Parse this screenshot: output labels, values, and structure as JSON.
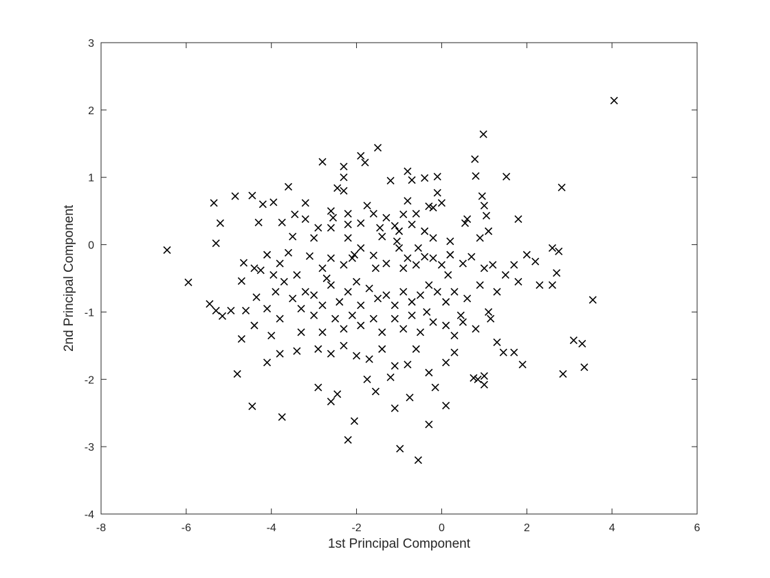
{
  "chart_data": {
    "type": "scatter",
    "title": "",
    "xlabel": "1st Principal Component",
    "ylabel": "2nd Principal Component",
    "xlim": [
      -8,
      6
    ],
    "ylim": [
      -4,
      3
    ],
    "xticks": [
      -8,
      -6,
      -4,
      -2,
      0,
      2,
      4,
      6
    ],
    "yticks": [
      -4,
      -3,
      -2,
      -1,
      0,
      1,
      2,
      3
    ],
    "grid": false,
    "box": true,
    "marker": "x",
    "marker_color": "#000000",
    "series": [
      {
        "points": [
          [
            4.05,
            2.14
          ],
          [
            0.98,
            1.64
          ],
          [
            -1.5,
            1.44
          ],
          [
            -1.9,
            1.32
          ],
          [
            -1.8,
            1.22
          ],
          [
            -2.8,
            1.23
          ],
          [
            -2.3,
            1.16
          ],
          [
            -0.8,
            1.09
          ],
          [
            -0.1,
            1.01
          ],
          [
            -0.4,
            0.99
          ],
          [
            -1.2,
            0.95
          ],
          [
            0.78,
            1.27
          ],
          [
            0.8,
            1.02
          ],
          [
            1.52,
            1.01
          ],
          [
            2.82,
            0.85
          ],
          [
            -2.3,
            1.0
          ],
          [
            -3.6,
            0.86
          ],
          [
            -2.45,
            0.84
          ],
          [
            -2.3,
            0.8
          ],
          [
            -0.7,
            0.96
          ],
          [
            -0.1,
            0.77
          ],
          [
            -3.2,
            0.62
          ],
          [
            -4.45,
            0.73
          ],
          [
            -4.85,
            0.72
          ],
          [
            -5.35,
            0.62
          ],
          [
            -5.2,
            0.32
          ],
          [
            -5.3,
            0.02
          ],
          [
            -4.3,
            0.33
          ],
          [
            -4.2,
            0.6
          ],
          [
            -3.95,
            0.63
          ],
          [
            -3.75,
            0.33
          ],
          [
            -3.45,
            0.45
          ],
          [
            -3.2,
            0.38
          ],
          [
            -3.5,
            0.12
          ],
          [
            -2.9,
            0.25
          ],
          [
            -2.6,
            0.5
          ],
          [
            -2.55,
            0.4
          ],
          [
            -2.2,
            0.46
          ],
          [
            -1.75,
            0.58
          ],
          [
            -1.6,
            0.46
          ],
          [
            -1.3,
            0.4
          ],
          [
            -0.9,
            0.45
          ],
          [
            -0.6,
            0.46
          ],
          [
            -0.3,
            0.57
          ],
          [
            0.0,
            0.62
          ],
          [
            -0.2,
            0.55
          ],
          [
            0.6,
            0.38
          ],
          [
            0.55,
            0.32
          ],
          [
            1.0,
            0.58
          ],
          [
            1.05,
            0.43
          ],
          [
            0.95,
            0.72
          ],
          [
            1.8,
            0.38
          ],
          [
            -0.8,
            0.65
          ],
          [
            -1.1,
            0.28
          ],
          [
            -1.9,
            0.32
          ],
          [
            -2.2,
            0.3
          ],
          [
            -2.6,
            0.25
          ],
          [
            -3.0,
            0.1
          ],
          [
            -2.2,
            0.1
          ],
          [
            -1.4,
            0.12
          ],
          [
            -1.0,
            0.2
          ],
          [
            -0.7,
            0.3
          ],
          [
            -0.4,
            0.2
          ],
          [
            -0.2,
            0.1
          ],
          [
            0.2,
            0.05
          ],
          [
            0.9,
            0.1
          ],
          [
            1.1,
            0.2
          ],
          [
            -6.45,
            -0.08
          ],
          [
            -5.95,
            -0.56
          ],
          [
            -5.45,
            -0.88
          ],
          [
            -5.3,
            -0.98
          ],
          [
            -5.15,
            -1.06
          ],
          [
            -4.95,
            -0.98
          ],
          [
            -4.7,
            -0.54
          ],
          [
            -4.65,
            -0.27
          ],
          [
            -4.4,
            -0.35
          ],
          [
            -4.25,
            -0.38
          ],
          [
            -4.1,
            -0.15
          ],
          [
            -3.95,
            -0.45
          ],
          [
            -3.8,
            -0.28
          ],
          [
            -3.6,
            -0.12
          ],
          [
            -3.4,
            -0.45
          ],
          [
            -3.1,
            -0.17
          ],
          [
            -2.8,
            -0.35
          ],
          [
            -2.6,
            -0.2
          ],
          [
            -2.3,
            -0.3
          ],
          [
            -2.1,
            -0.2
          ],
          [
            -1.9,
            -0.05
          ],
          [
            -1.6,
            -0.16
          ],
          [
            -1.3,
            -0.28
          ],
          [
            -1.0,
            -0.05
          ],
          [
            -0.8,
            -0.2
          ],
          [
            -0.6,
            -0.3
          ],
          [
            -0.4,
            -0.18
          ],
          [
            -0.2,
            -0.2
          ],
          [
            0.0,
            -0.3
          ],
          [
            0.2,
            -0.15
          ],
          [
            0.5,
            -0.28
          ],
          [
            0.7,
            -0.18
          ],
          [
            1.0,
            -0.35
          ],
          [
            1.2,
            -0.3
          ],
          [
            1.5,
            -0.45
          ],
          [
            1.7,
            -0.3
          ],
          [
            2.0,
            -0.15
          ],
          [
            2.2,
            -0.25
          ],
          [
            2.6,
            -0.05
          ],
          [
            2.75,
            -0.1
          ],
          [
            2.6,
            -0.6
          ],
          [
            2.7,
            -0.42
          ],
          [
            3.55,
            -0.82
          ],
          [
            -4.6,
            -0.98
          ],
          [
            -4.35,
            -0.78
          ],
          [
            -4.1,
            -0.95
          ],
          [
            -3.9,
            -0.7
          ],
          [
            -3.7,
            -0.55
          ],
          [
            -3.5,
            -0.8
          ],
          [
            -3.2,
            -0.7
          ],
          [
            -3.0,
            -0.75
          ],
          [
            -2.8,
            -0.9
          ],
          [
            -2.6,
            -0.6
          ],
          [
            -2.4,
            -0.85
          ],
          [
            -2.2,
            -0.7
          ],
          [
            -2.0,
            -0.55
          ],
          [
            -1.9,
            -0.9
          ],
          [
            -1.7,
            -0.65
          ],
          [
            -1.5,
            -0.8
          ],
          [
            -1.3,
            -0.75
          ],
          [
            -1.1,
            -0.9
          ],
          [
            -0.9,
            -0.7
          ],
          [
            -0.7,
            -0.85
          ],
          [
            -0.5,
            -0.75
          ],
          [
            -0.3,
            -0.6
          ],
          [
            -0.1,
            -0.7
          ],
          [
            0.1,
            -0.85
          ],
          [
            0.3,
            -0.7
          ],
          [
            0.6,
            -0.8
          ],
          [
            0.9,
            -0.6
          ],
          [
            1.3,
            -0.7
          ],
          [
            1.8,
            -0.55
          ],
          [
            2.3,
            -0.6
          ],
          [
            -4.7,
            -1.4
          ],
          [
            -4.4,
            -1.2
          ],
          [
            -4.0,
            -1.35
          ],
          [
            -3.8,
            -1.1
          ],
          [
            -3.3,
            -1.3
          ],
          [
            -3.0,
            -1.05
          ],
          [
            -2.8,
            -1.3
          ],
          [
            -2.5,
            -1.1
          ],
          [
            -2.3,
            -1.25
          ],
          [
            -2.1,
            -1.05
          ],
          [
            -1.9,
            -1.2
          ],
          [
            -1.6,
            -1.1
          ],
          [
            -1.4,
            -1.3
          ],
          [
            -1.1,
            -1.1
          ],
          [
            -0.9,
            -1.25
          ],
          [
            -0.7,
            -1.05
          ],
          [
            -0.5,
            -1.3
          ],
          [
            -0.2,
            -1.15
          ],
          [
            0.1,
            -1.2
          ],
          [
            0.3,
            -1.35
          ],
          [
            0.5,
            -1.15
          ],
          [
            0.8,
            -1.25
          ],
          [
            1.1,
            -1.0
          ],
          [
            1.3,
            -1.45
          ],
          [
            1.45,
            -1.6
          ],
          [
            1.7,
            -1.6
          ],
          [
            1.9,
            -1.78
          ],
          [
            2.85,
            -1.92
          ],
          [
            3.1,
            -1.42
          ],
          [
            3.3,
            -1.47
          ],
          [
            3.35,
            -1.82
          ],
          [
            -4.8,
            -1.92
          ],
          [
            -4.1,
            -1.75
          ],
          [
            -3.8,
            -1.62
          ],
          [
            -3.4,
            -1.58
          ],
          [
            -2.9,
            -1.55
          ],
          [
            -2.6,
            -1.62
          ],
          [
            -2.3,
            -1.5
          ],
          [
            -2.0,
            -1.65
          ],
          [
            -1.7,
            -1.7
          ],
          [
            -1.4,
            -1.55
          ],
          [
            -1.1,
            -1.8
          ],
          [
            -0.8,
            -1.78
          ],
          [
            -0.6,
            -1.55
          ],
          [
            -0.3,
            -1.9
          ],
          [
            0.1,
            -1.75
          ],
          [
            0.3,
            -1.6
          ],
          [
            0.75,
            -1.98
          ],
          [
            1.0,
            -1.95
          ],
          [
            -4.45,
            -2.4
          ],
          [
            -3.75,
            -2.56
          ],
          [
            -2.9,
            -2.12
          ],
          [
            -2.6,
            -2.33
          ],
          [
            -2.45,
            -2.22
          ],
          [
            -2.05,
            -2.62
          ],
          [
            -2.2,
            -2.9
          ],
          [
            -1.55,
            -2.18
          ],
          [
            -1.1,
            -2.43
          ],
          [
            -0.75,
            -2.27
          ],
          [
            -0.3,
            -2.67
          ],
          [
            0.1,
            -2.39
          ],
          [
            -0.15,
            -2.12
          ],
          [
            -0.98,
            -3.03
          ],
          [
            -0.55,
            -3.2
          ],
          [
            -1.75,
            -2.0
          ],
          [
            -1.2,
            -1.97
          ],
          [
            1.0,
            -2.08
          ],
          [
            0.85,
            -2.0
          ],
          [
            -1.05,
            0.05
          ],
          [
            -0.55,
            -0.05
          ],
          [
            0.15,
            -0.45
          ],
          [
            -1.55,
            -0.35
          ],
          [
            -2.7,
            -0.5
          ],
          [
            -3.3,
            -0.95
          ],
          [
            -0.9,
            -0.35
          ],
          [
            -0.35,
            -1.0
          ],
          [
            0.45,
            -1.05
          ],
          [
            1.15,
            -1.1
          ],
          [
            -1.45,
            0.25
          ],
          [
            -2.05,
            -0.15
          ]
        ]
      }
    ]
  }
}
